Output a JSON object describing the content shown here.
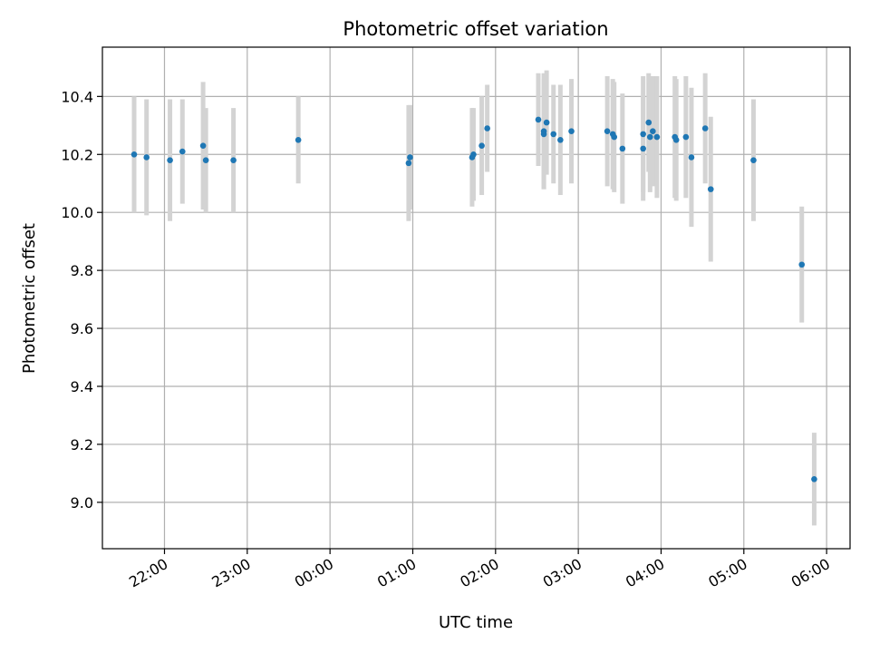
{
  "chart_data": {
    "type": "scatter",
    "title": "Photometric offset variation",
    "xlabel": "UTC time",
    "ylabel": "Photometric offset",
    "x_ticks": [
      "22:00",
      "23:00",
      "00:00",
      "01:00",
      "02:00",
      "03:00",
      "04:00",
      "05:00",
      "06:00"
    ],
    "y_ticks": [
      "9.0",
      "9.2",
      "9.4",
      "9.6",
      "9.8",
      "10.0",
      "10.2",
      "10.4"
    ],
    "xlim": [
      "21:15",
      "06:17"
    ],
    "ylim": [
      8.84,
      10.57
    ],
    "grid": true,
    "colors": {
      "point": "#1f77b4",
      "errorbar": "#d3d3d3",
      "grid": "#b0b0b0"
    },
    "points": [
      {
        "x": "21:38",
        "y": 10.2,
        "err": 0.2
      },
      {
        "x": "21:47",
        "y": 10.19,
        "err": 0.2
      },
      {
        "x": "22:04",
        "y": 10.18,
        "err": 0.21
      },
      {
        "x": "22:13",
        "y": 10.21,
        "err": 0.18
      },
      {
        "x": "22:28",
        "y": 10.23,
        "err": 0.22
      },
      {
        "x": "22:30",
        "y": 10.18,
        "err": 0.18
      },
      {
        "x": "22:50",
        "y": 10.18,
        "err": 0.18
      },
      {
        "x": "23:37",
        "y": 10.25,
        "err": 0.15
      },
      {
        "x": "00:57",
        "y": 10.17,
        "err": 0.2
      },
      {
        "x": "00:58",
        "y": 10.19,
        "err": 0.18
      },
      {
        "x": "01:43",
        "y": 10.19,
        "err": 0.17
      },
      {
        "x": "01:44",
        "y": 10.2,
        "err": 0.16
      },
      {
        "x": "01:50",
        "y": 10.23,
        "err": 0.17
      },
      {
        "x": "01:54",
        "y": 10.29,
        "err": 0.15
      },
      {
        "x": "02:31",
        "y": 10.32,
        "err": 0.16
      },
      {
        "x": "02:35",
        "y": 10.28,
        "err": 0.2
      },
      {
        "x": "02:35",
        "y": 10.27,
        "err": 0.19
      },
      {
        "x": "02:37",
        "y": 10.31,
        "err": 0.18
      },
      {
        "x": "02:42",
        "y": 10.27,
        "err": 0.17
      },
      {
        "x": "02:47",
        "y": 10.25,
        "err": 0.19
      },
      {
        "x": "02:55",
        "y": 10.28,
        "err": 0.18
      },
      {
        "x": "03:21",
        "y": 10.28,
        "err": 0.19
      },
      {
        "x": "03:25",
        "y": 10.27,
        "err": 0.19
      },
      {
        "x": "03:26",
        "y": 10.26,
        "err": 0.19
      },
      {
        "x": "03:32",
        "y": 10.22,
        "err": 0.19
      },
      {
        "x": "03:47",
        "y": 10.27,
        "err": 0.2
      },
      {
        "x": "03:47",
        "y": 10.22,
        "err": 0.18
      },
      {
        "x": "03:51",
        "y": 10.31,
        "err": 0.17
      },
      {
        "x": "03:52",
        "y": 10.26,
        "err": 0.19
      },
      {
        "x": "03:54",
        "y": 10.28,
        "err": 0.19
      },
      {
        "x": "03:57",
        "y": 10.26,
        "err": 0.21
      },
      {
        "x": "04:10",
        "y": 10.26,
        "err": 0.21
      },
      {
        "x": "04:11",
        "y": 10.25,
        "err": 0.21
      },
      {
        "x": "04:18",
        "y": 10.26,
        "err": 0.21
      },
      {
        "x": "04:22",
        "y": 10.19,
        "err": 0.24
      },
      {
        "x": "04:32",
        "y": 10.29,
        "err": 0.19
      },
      {
        "x": "04:36",
        "y": 10.08,
        "err": 0.25
      },
      {
        "x": "05:07",
        "y": 10.18,
        "err": 0.21
      },
      {
        "x": "05:42",
        "y": 9.82,
        "err": 0.2
      },
      {
        "x": "05:51",
        "y": 9.08,
        "err": 0.16
      }
    ]
  }
}
